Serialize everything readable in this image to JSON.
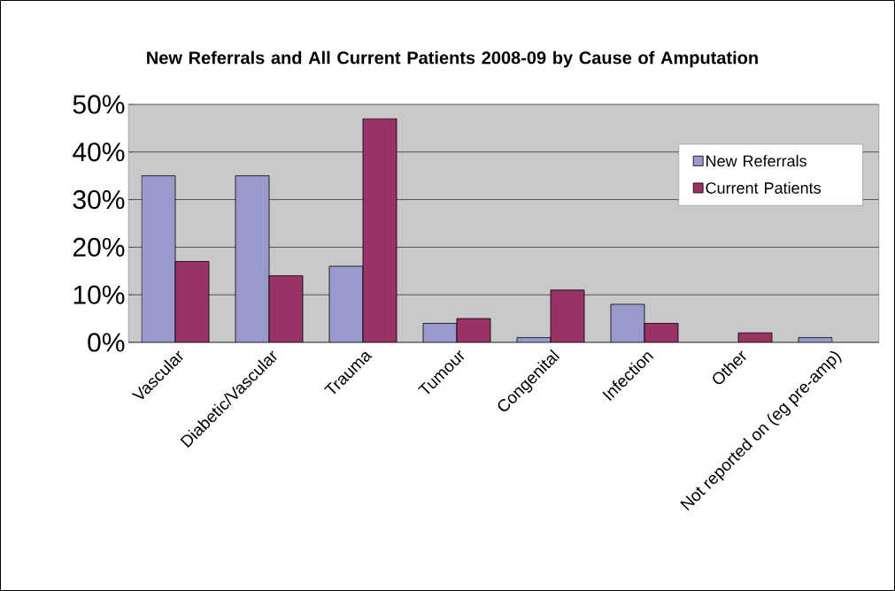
{
  "chart_data": {
    "type": "bar",
    "title": "New Referrals and All Current Patients 2008-09 by Cause of Amputation",
    "categories": [
      "Vascular",
      "Diabetic/Vascular",
      "Trauma",
      "Tumour",
      "Congenital",
      "Infection",
      "Other",
      "Not reported on (eg pre-amp)"
    ],
    "series": [
      {
        "name": "New Referrals",
        "color": "#9999cc",
        "values": [
          35,
          35,
          16,
          4,
          1,
          8,
          null,
          1
        ]
      },
      {
        "name": "Current Patients",
        "color": "#993366",
        "values": [
          17,
          14,
          47,
          5,
          11,
          4,
          2,
          null
        ]
      }
    ],
    "ylim": [
      0,
      50
    ],
    "yticks": [
      {
        "value": 0,
        "label": "0%"
      },
      {
        "value": 10,
        "label": "10%"
      },
      {
        "value": 20,
        "label": "20%"
      },
      {
        "value": 30,
        "label": "30%"
      },
      {
        "value": 40,
        "label": "40%"
      },
      {
        "value": 50,
        "label": "50%"
      }
    ],
    "grid": "y",
    "legend": "top right"
  }
}
